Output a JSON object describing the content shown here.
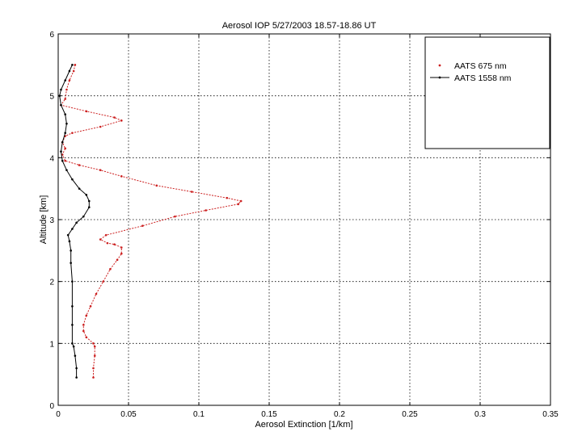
{
  "chart_data": {
    "type": "line",
    "title": "Aerosol IOP  5/27/2003 18.57-18.86  UT",
    "xlabel": "Aerosol Extinction [1/km]",
    "ylabel": "Altitude [km]",
    "xlim": [
      0,
      0.35
    ],
    "ylim": [
      0,
      6
    ],
    "xticks": [
      0,
      0.05,
      0.1,
      0.15,
      0.2,
      0.25,
      0.3,
      0.35
    ],
    "xtick_labels": [
      "0",
      "0.05",
      "0.1",
      "0.15",
      "0.2",
      "0.25",
      "0.3",
      "0.35"
    ],
    "yticks": [
      0,
      1,
      2,
      3,
      4,
      5,
      6
    ],
    "ytick_labels": [
      "0",
      "1",
      "2",
      "3",
      "4",
      "5",
      "6"
    ],
    "grid": true,
    "legend_position": "top-right",
    "series": [
      {
        "name": "AATS 675 nm",
        "color": "#cc2020",
        "marker": "dot",
        "points": [
          [
            0.025,
            0.45
          ],
          [
            0.025,
            0.6
          ],
          [
            0.026,
            0.8
          ],
          [
            0.026,
            0.95
          ],
          [
            0.025,
            1.0
          ],
          [
            0.02,
            1.1
          ],
          [
            0.018,
            1.2
          ],
          [
            0.018,
            1.3
          ],
          [
            0.02,
            1.45
          ],
          [
            0.023,
            1.6
          ],
          [
            0.027,
            1.8
          ],
          [
            0.032,
            2.0
          ],
          [
            0.037,
            2.2
          ],
          [
            0.042,
            2.35
          ],
          [
            0.045,
            2.45
          ],
          [
            0.045,
            2.55
          ],
          [
            0.04,
            2.6
          ],
          [
            0.035,
            2.62
          ],
          [
            0.03,
            2.68
          ],
          [
            0.034,
            2.75
          ],
          [
            0.06,
            2.9
          ],
          [
            0.083,
            3.05
          ],
          [
            0.105,
            3.15
          ],
          [
            0.128,
            3.25
          ],
          [
            0.13,
            3.3
          ],
          [
            0.12,
            3.35
          ],
          [
            0.095,
            3.45
          ],
          [
            0.07,
            3.55
          ],
          [
            0.045,
            3.7
          ],
          [
            0.03,
            3.8
          ],
          [
            0.015,
            3.88
          ],
          [
            0.005,
            3.95
          ],
          [
            0.003,
            4.05
          ],
          [
            0.005,
            4.15
          ],
          [
            0.003,
            4.25
          ],
          [
            0.005,
            4.35
          ],
          [
            0.01,
            4.4
          ],
          [
            0.03,
            4.5
          ],
          [
            0.045,
            4.6
          ],
          [
            0.04,
            4.65
          ],
          [
            0.02,
            4.75
          ],
          [
            0.002,
            4.85
          ],
          [
            0.005,
            4.95
          ],
          [
            0.006,
            5.1
          ],
          [
            0.008,
            5.25
          ],
          [
            0.011,
            5.4
          ],
          [
            0.012,
            5.5
          ]
        ]
      },
      {
        "name": "AATS 1558 nm",
        "color": "#000000",
        "marker": "dot",
        "points": [
          [
            0.013,
            0.45
          ],
          [
            0.013,
            0.6
          ],
          [
            0.012,
            0.8
          ],
          [
            0.011,
            0.95
          ],
          [
            0.01,
            1.0
          ],
          [
            0.01,
            1.3
          ],
          [
            0.01,
            1.6
          ],
          [
            0.01,
            2.0
          ],
          [
            0.009,
            2.3
          ],
          [
            0.009,
            2.5
          ],
          [
            0.008,
            2.65
          ],
          [
            0.007,
            2.75
          ],
          [
            0.01,
            2.85
          ],
          [
            0.013,
            2.95
          ],
          [
            0.018,
            3.05
          ],
          [
            0.022,
            3.2
          ],
          [
            0.022,
            3.3
          ],
          [
            0.02,
            3.4
          ],
          [
            0.015,
            3.5
          ],
          [
            0.01,
            3.65
          ],
          [
            0.006,
            3.8
          ],
          [
            0.003,
            3.95
          ],
          [
            0.002,
            4.1
          ],
          [
            0.003,
            4.25
          ],
          [
            0.005,
            4.4
          ],
          [
            0.006,
            4.55
          ],
          [
            0.005,
            4.7
          ],
          [
            0.002,
            4.85
          ],
          [
            0.001,
            5.0
          ],
          [
            0.002,
            5.1
          ],
          [
            0.005,
            5.25
          ],
          [
            0.008,
            5.4
          ],
          [
            0.01,
            5.5
          ]
        ]
      }
    ]
  }
}
